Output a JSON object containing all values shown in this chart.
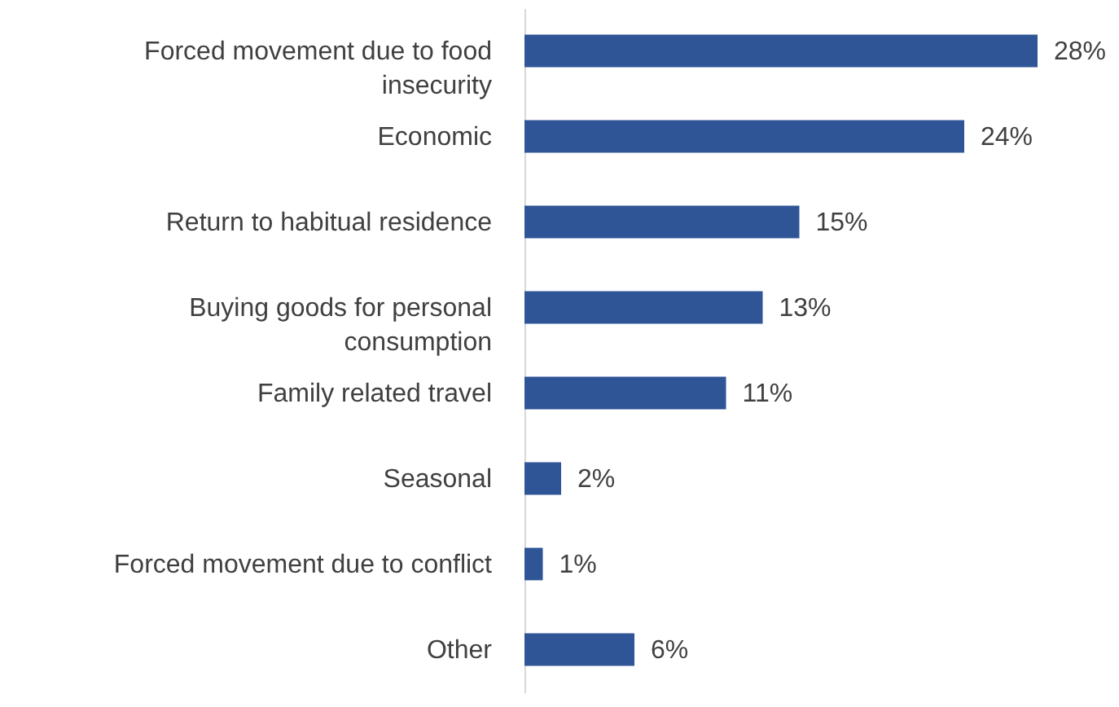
{
  "chart_data": {
    "type": "bar",
    "orientation": "horizontal",
    "categories": [
      "Forced movement due to food insecurity",
      "Economic",
      "Return to habitual residence",
      "Buying goods for personal consumption",
      "Family related travel",
      "Seasonal",
      "Forced movement due to conflict",
      "Other"
    ],
    "values": [
      28,
      24,
      15,
      13,
      11,
      2,
      1,
      6
    ],
    "value_labels": [
      "28%",
      "24%",
      "15%",
      "13%",
      "11%",
      "2%",
      "1%",
      "6%"
    ],
    "color": "#2f5597",
    "grid": false
  }
}
